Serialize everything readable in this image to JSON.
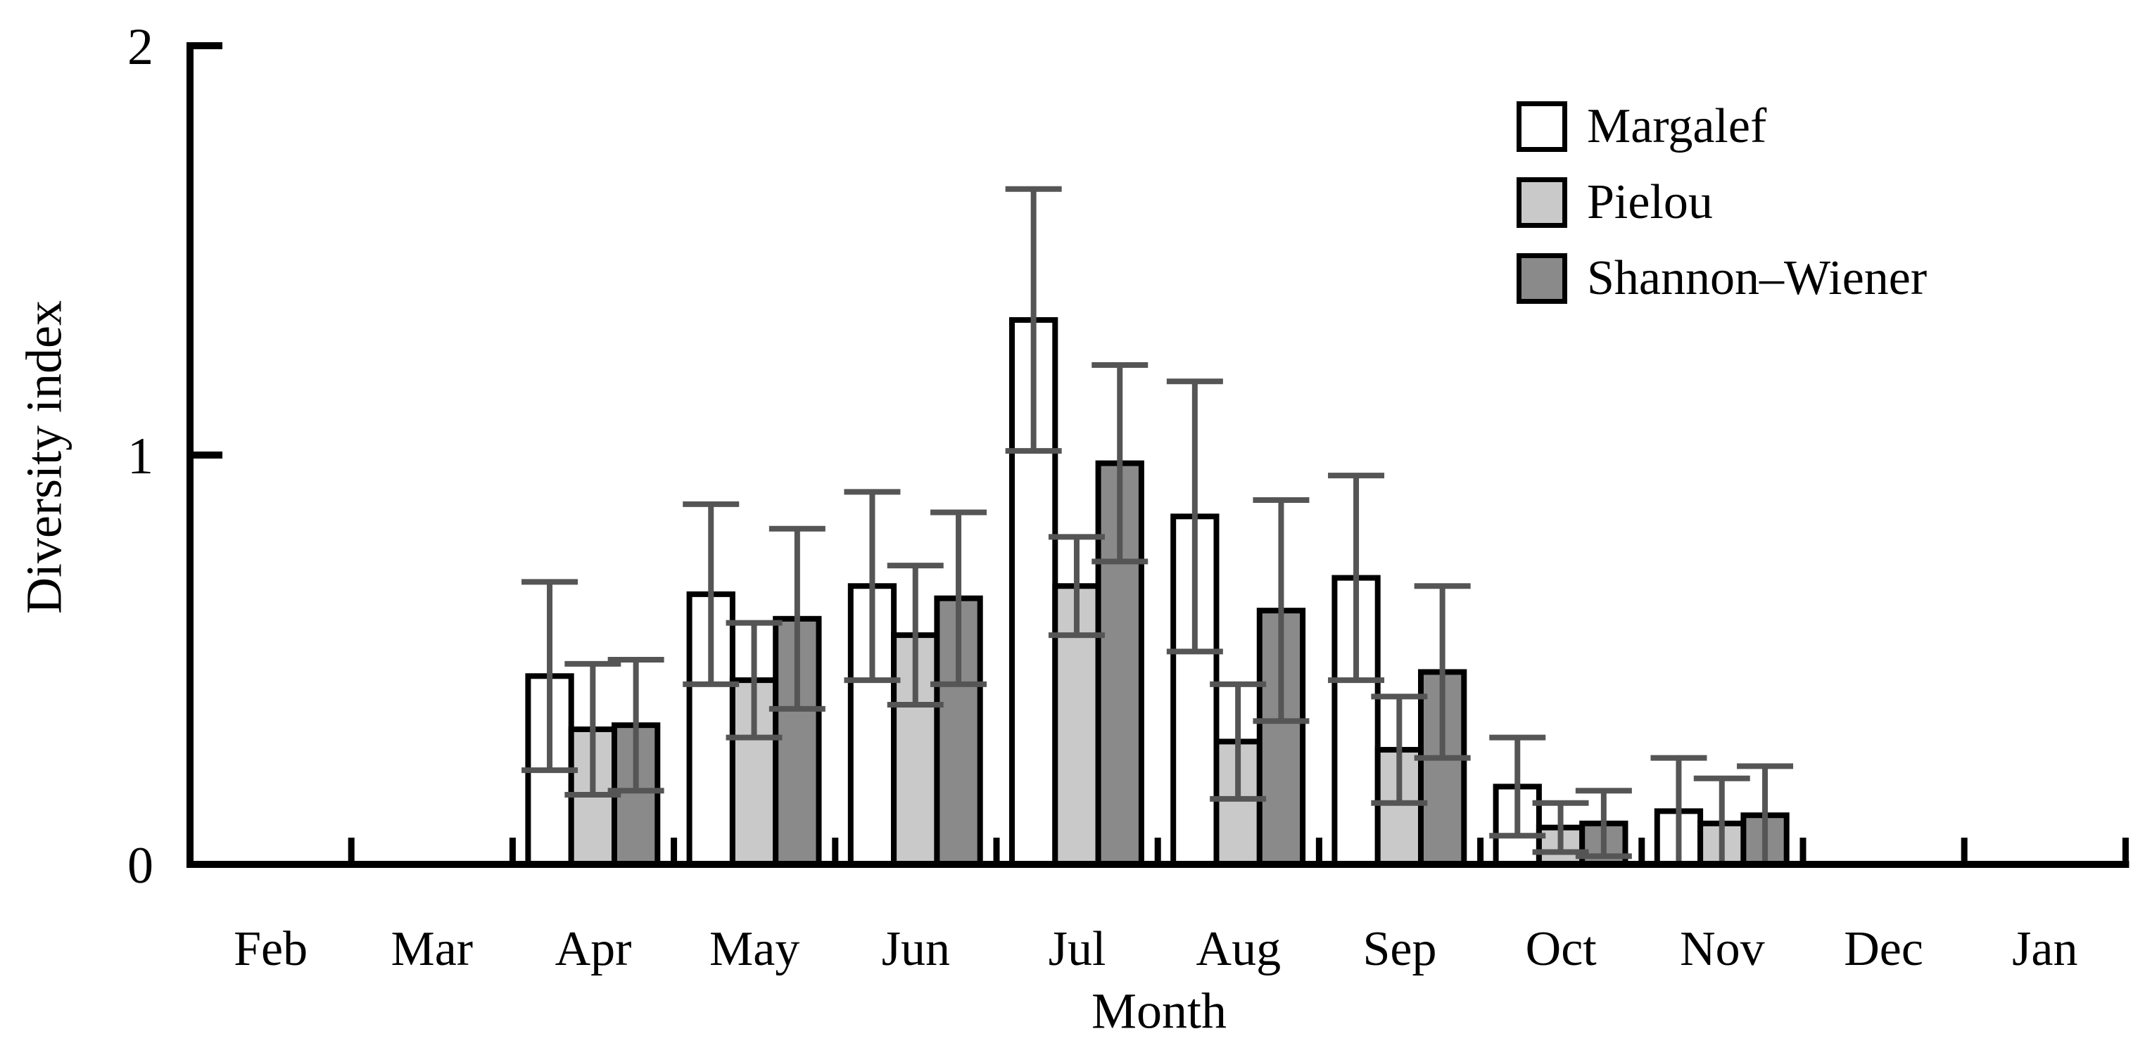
{
  "chart_data": {
    "type": "bar",
    "title": "",
    "xlabel": "Month",
    "ylabel": "Diversity index",
    "ylim": [
      0,
      2
    ],
    "yticks": [
      0,
      1,
      2
    ],
    "grid": false,
    "legend_position": "top-right",
    "error_bars": true,
    "error_bar_color": "#555555",
    "bar_border_color": "#000000",
    "categories": [
      "Feb",
      "Mar",
      "Apr",
      "May",
      "Jun",
      "Jul",
      "Aug",
      "Sep",
      "Oct",
      "Nov",
      "Dec",
      "Jan"
    ],
    "series": [
      {
        "name": "Margalef",
        "fill": "#ffffff",
        "values": [
          null,
          null,
          0.46,
          0.66,
          0.68,
          1.33,
          0.85,
          0.7,
          0.19,
          0.13,
          null,
          null
        ],
        "errors": [
          null,
          null,
          0.23,
          0.22,
          0.23,
          0.32,
          0.33,
          0.25,
          0.12,
          0.13,
          null,
          null
        ]
      },
      {
        "name": "Pielou",
        "fill": "#c9c9c9",
        "values": [
          null,
          null,
          0.33,
          0.45,
          0.56,
          0.68,
          0.3,
          0.28,
          0.09,
          0.1,
          null,
          null
        ],
        "errors": [
          null,
          null,
          0.16,
          0.14,
          0.17,
          0.12,
          0.14,
          0.13,
          0.06,
          0.11,
          null,
          null
        ]
      },
      {
        "name": "Shannon–Wiener",
        "fill": "#8a8a8a",
        "values": [
          null,
          null,
          0.34,
          0.6,
          0.65,
          0.98,
          0.62,
          0.47,
          0.1,
          0.12,
          null,
          null
        ],
        "errors": [
          null,
          null,
          0.16,
          0.22,
          0.21,
          0.24,
          0.27,
          0.21,
          0.08,
          0.12,
          null,
          null
        ]
      }
    ]
  }
}
